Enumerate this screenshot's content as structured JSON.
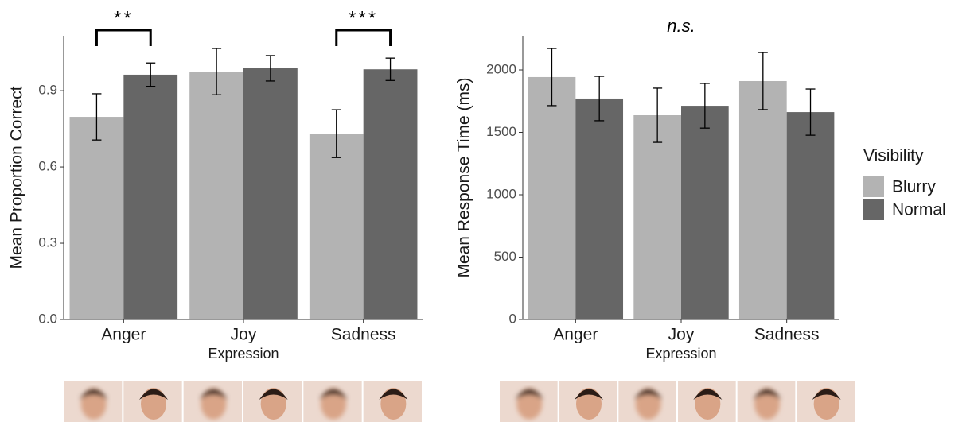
{
  "chart_data": [
    {
      "type": "bar",
      "y_label": "Mean Proportion Correct",
      "x_label": "Expression",
      "categories": [
        "Anger",
        "Joy",
        "Sadness"
      ],
      "series": [
        {
          "name": "Blurry",
          "color": "#b3b3b3",
          "values": [
            0.797,
            0.975,
            0.731
          ],
          "errors": [
            0.091,
            0.091,
            0.094
          ]
        },
        {
          "name": "Normal",
          "color": "#666666",
          "values": [
            0.963,
            0.988,
            0.984
          ],
          "errors": [
            0.046,
            0.05,
            0.044
          ]
        }
      ],
      "ylim": [
        0,
        1.116
      ],
      "yticks": [
        {
          "value": 0,
          "label": "0.0"
        },
        0.3,
        0.6,
        0.9
      ],
      "annotations": [
        {
          "text": "**",
          "category": 0
        },
        {
          "text": "***",
          "category": 2
        }
      ]
    },
    {
      "type": "bar",
      "title": "n.s.",
      "y_label": "Mean Response Time (ms)",
      "x_label": "Expression",
      "categories": [
        "Anger",
        "Joy",
        "Sadness"
      ],
      "series": [
        {
          "name": "Blurry",
          "color": "#b3b3b3",
          "values": [
            1943,
            1637,
            1911
          ],
          "errors": [
            229,
            217,
            229
          ]
        },
        {
          "name": "Normal",
          "color": "#666666",
          "values": [
            1771,
            1713,
            1662
          ],
          "errors": [
            178,
            179,
            185
          ]
        }
      ],
      "ylim": [
        0,
        2274
      ],
      "yticks": [
        0,
        500,
        1000,
        1500,
        2000
      ],
      "legend_title": "Visibility",
      "legend": "right"
    }
  ]
}
